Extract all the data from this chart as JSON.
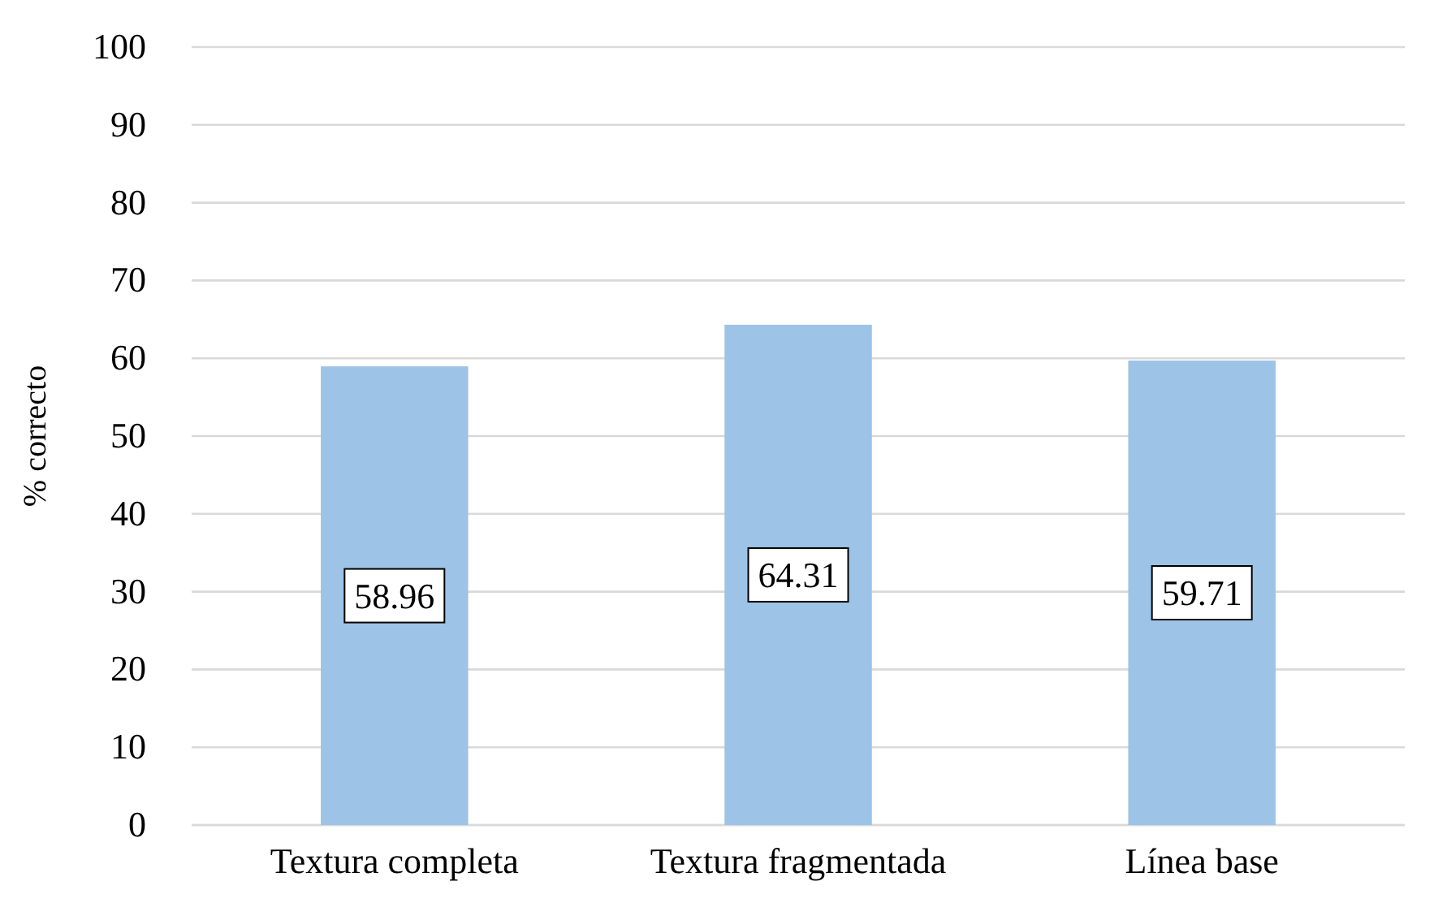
{
  "chart_data": {
    "type": "bar",
    "ylabel": "% correcto",
    "categories": [
      "Textura completa",
      "Textura fragmentada",
      "Línea base"
    ],
    "values": [
      58.96,
      64.31,
      59.71
    ],
    "color": "#9dc3e6",
    "ylim": [
      0,
      100
    ],
    "yticks": [
      0,
      10,
      20,
      30,
      40,
      50,
      60,
      70,
      80,
      90,
      100
    ],
    "grid": "y",
    "data_labels": true
  }
}
